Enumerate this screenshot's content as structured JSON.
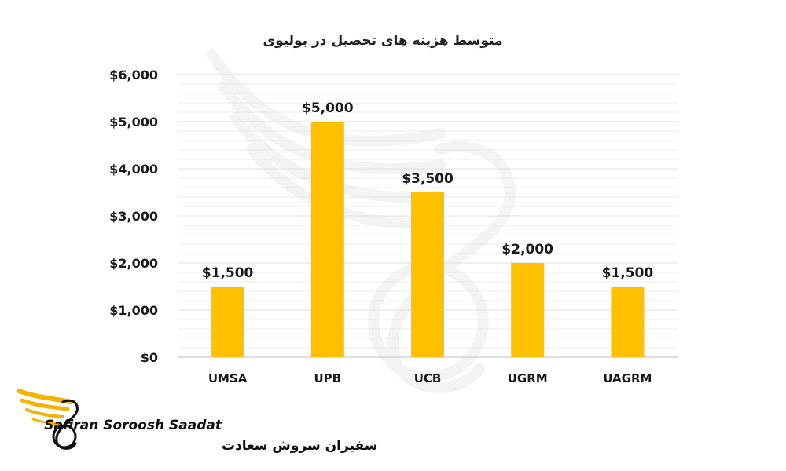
{
  "chart_data": {
    "type": "bar",
    "title": "متوسط هزینه های تحصیل در بولیوی",
    "categories": [
      "UMSA",
      "UPB",
      "UCB",
      "UGRM",
      "UAGRM"
    ],
    "values": [
      1500,
      5000,
      3500,
      2000,
      1500
    ],
    "data_labels": [
      "$1,500",
      "$5,000",
      "$3,500",
      "$2,000",
      "$1,500"
    ],
    "y_ticks": [
      0,
      1000,
      2000,
      3000,
      4000,
      5000,
      6000
    ],
    "y_tick_labels": [
      "$0",
      "$1,000",
      "$2,000",
      "$3,000",
      "$4,000",
      "$5,000",
      "$6,000"
    ],
    "ylim": [
      0,
      6000
    ],
    "grid": true,
    "legend": "none",
    "bar_color": "#ffc000",
    "grid_color": "#e4e4e4"
  },
  "brand": {
    "name_en": "Safiran Soroosh Saadat",
    "name_fa": "سفیران سروش سعادت",
    "accent_color": "#f5b301"
  }
}
